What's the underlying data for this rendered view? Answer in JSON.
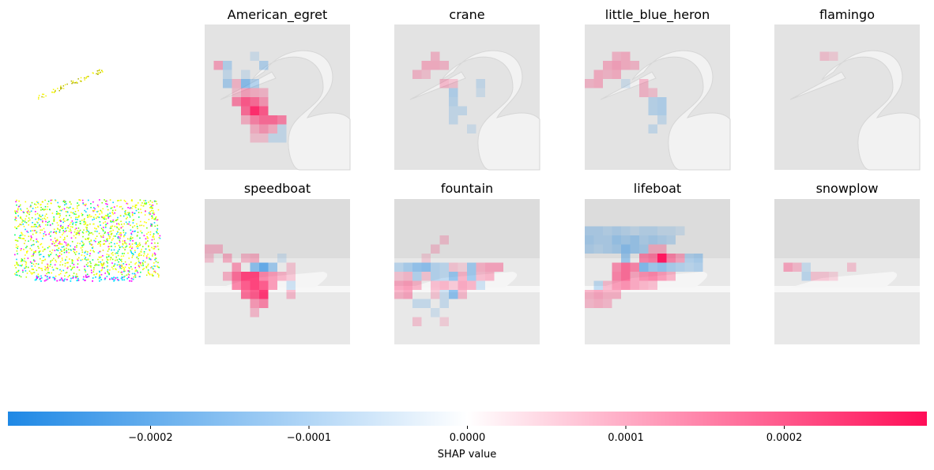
{
  "chart_data": {
    "type": "heatmap",
    "colors": {
      "negative": "#1e88e5",
      "positive": "#ff0d57",
      "neutral": "#ffffff",
      "background_image": "#e6e6e6"
    },
    "rows": [
      {
        "labels": [
          "American_egret",
          "crane",
          "little_blue_heron",
          "flamingo"
        ],
        "scene": "egret"
      },
      {
        "labels": [
          "speedboat",
          "fountain",
          "lifeboat",
          "snowplow"
        ],
        "scene": "boat"
      }
    ],
    "colorbar": {
      "label": "SHAP value",
      "ticks": [
        -0.0002,
        -0.0001,
        0.0,
        0.0001,
        0.0002
      ],
      "tick_labels": [
        "−0.0002",
        "−0.0001",
        "0.0000",
        "0.0001",
        "0.0002"
      ],
      "range": [
        -0.00029,
        0.00029
      ]
    },
    "hotspots": [
      [
        [
          [
            6,
            3,
            0.25
          ],
          [
            6,
            4,
            -0.5
          ],
          [
            6,
            5,
            -0.3
          ],
          [
            5,
            4,
            -0.15
          ],
          [
            7,
            3,
            0.2
          ],
          [
            7,
            4,
            0.35
          ],
          [
            7,
            5,
            0.3
          ],
          [
            7,
            6,
            0.25
          ],
          [
            8,
            3,
            0.5
          ],
          [
            8,
            4,
            0.7
          ],
          [
            8,
            5,
            0.6
          ],
          [
            8,
            6,
            0.4
          ],
          [
            9,
            4,
            0.6
          ],
          [
            9,
            5,
            0.9
          ],
          [
            9,
            6,
            0.7
          ],
          [
            10,
            4,
            0.3
          ],
          [
            10,
            5,
            0.5
          ],
          [
            10,
            6,
            0.6
          ],
          [
            10,
            7,
            0.6
          ],
          [
            10,
            8,
            0.5
          ],
          [
            11,
            5,
            0.3
          ],
          [
            11,
            6,
            0.4
          ],
          [
            11,
            7,
            0.3
          ],
          [
            12,
            5,
            0.2
          ],
          [
            12,
            6,
            0.2
          ],
          [
            12,
            7,
            -0.2
          ],
          [
            4,
            1,
            0.35
          ],
          [
            4,
            2,
            -0.3
          ],
          [
            5,
            2,
            -0.2
          ],
          [
            4,
            6,
            -0.3
          ],
          [
            6,
            2,
            -0.35
          ],
          [
            3,
            5,
            -0.15
          ],
          [
            11,
            8,
            -0.2
          ],
          [
            12,
            8,
            -0.2
          ]
        ],
        [
          [
            3,
            4,
            0.25
          ],
          [
            4,
            4,
            0.3
          ],
          [
            4,
            3,
            0.3
          ],
          [
            4,
            5,
            0.25
          ],
          [
            5,
            2,
            0.25
          ],
          [
            5,
            3,
            0.2
          ],
          [
            6,
            5,
            0.25
          ],
          [
            6,
            6,
            0.2
          ],
          [
            7,
            6,
            -0.3
          ],
          [
            8,
            6,
            -0.25
          ],
          [
            9,
            6,
            -0.2
          ],
          [
            9,
            7,
            -0.2
          ],
          [
            10,
            6,
            -0.2
          ],
          [
            6,
            9,
            -0.2
          ],
          [
            7,
            9,
            -0.15
          ],
          [
            11,
            8,
            -0.15
          ]
        ],
        [
          [
            3,
            3,
            0.25
          ],
          [
            3,
            4,
            0.3
          ],
          [
            4,
            2,
            0.3
          ],
          [
            4,
            3,
            0.35
          ],
          [
            4,
            4,
            0.3
          ],
          [
            4,
            5,
            0.25
          ],
          [
            5,
            1,
            0.3
          ],
          [
            5,
            2,
            0.25
          ],
          [
            5,
            3,
            0.3
          ],
          [
            6,
            0,
            0.25
          ],
          [
            6,
            1,
            0.3
          ],
          [
            6,
            6,
            0.25
          ],
          [
            7,
            6,
            0.25
          ],
          [
            7,
            7,
            0.2
          ],
          [
            8,
            7,
            -0.25
          ],
          [
            8,
            8,
            -0.3
          ],
          [
            9,
            7,
            -0.25
          ],
          [
            9,
            8,
            -0.3
          ],
          [
            10,
            8,
            -0.2
          ],
          [
            11,
            7,
            -0.2
          ],
          [
            6,
            4,
            -0.15
          ]
        ],
        [
          [
            3,
            5,
            0.2
          ],
          [
            3,
            6,
            0.15
          ]
        ]
      ],
      [
        [
          [
            5,
            0,
            0.25
          ],
          [
            5,
            1,
            0.25
          ],
          [
            6,
            0,
            0.2
          ],
          [
            6,
            2,
            0.3
          ],
          [
            6,
            4,
            0.25
          ],
          [
            6,
            5,
            0.3
          ],
          [
            7,
            3,
            0.4
          ],
          [
            7,
            5,
            -0.5
          ],
          [
            7,
            6,
            -0.7
          ],
          [
            7,
            7,
            -0.4
          ],
          [
            8,
            2,
            0.3
          ],
          [
            8,
            3,
            0.6
          ],
          [
            8,
            4,
            0.8
          ],
          [
            8,
            5,
            0.8
          ],
          [
            8,
            6,
            0.5
          ],
          [
            8,
            7,
            0.4
          ],
          [
            8,
            8,
            0.3
          ],
          [
            9,
            3,
            0.5
          ],
          [
            9,
            4,
            0.7
          ],
          [
            9,
            5,
            0.8
          ],
          [
            9,
            6,
            0.7
          ],
          [
            9,
            7,
            0.4
          ],
          [
            10,
            4,
            0.6
          ],
          [
            10,
            5,
            0.7
          ],
          [
            10,
            6,
            0.85
          ],
          [
            11,
            5,
            0.4
          ],
          [
            11,
            6,
            0.5
          ],
          [
            12,
            5,
            0.25
          ],
          [
            7,
            9,
            0.2
          ],
          [
            8,
            9,
            0.2
          ],
          [
            6,
            8,
            -0.15
          ],
          [
            9,
            9,
            -0.2
          ],
          [
            10,
            9,
            0.25
          ]
        ],
        [
          [
            7,
            0,
            -0.25
          ],
          [
            7,
            1,
            -0.35
          ],
          [
            7,
            2,
            -0.45
          ],
          [
            7,
            3,
            -0.5
          ],
          [
            7,
            4,
            -0.3
          ],
          [
            7,
            5,
            -0.25
          ],
          [
            7,
            6,
            0.2
          ],
          [
            7,
            7,
            0.15
          ],
          [
            7,
            8,
            -0.4
          ],
          [
            7,
            9,
            0.3
          ],
          [
            7,
            10,
            0.35
          ],
          [
            7,
            11,
            0.35
          ],
          [
            8,
            0,
            0.2
          ],
          [
            8,
            1,
            0.25
          ],
          [
            8,
            2,
            -0.3
          ],
          [
            8,
            3,
            0.2
          ],
          [
            8,
            4,
            -0.3
          ],
          [
            8,
            5,
            -0.25
          ],
          [
            8,
            6,
            -0.45
          ],
          [
            8,
            7,
            0.3
          ],
          [
            8,
            8,
            -0.4
          ],
          [
            8,
            9,
            0.25
          ],
          [
            8,
            10,
            0.3
          ],
          [
            9,
            0,
            0.35
          ],
          [
            9,
            1,
            0.4
          ],
          [
            9,
            2,
            0.3
          ],
          [
            9,
            4,
            0.25
          ],
          [
            9,
            5,
            0.3
          ],
          [
            9,
            6,
            0.2
          ],
          [
            9,
            7,
            0.35
          ],
          [
            9,
            8,
            0.3
          ],
          [
            9,
            9,
            -0.2
          ],
          [
            10,
            0,
            0.3
          ],
          [
            10,
            1,
            0.35
          ],
          [
            10,
            4,
            0.2
          ],
          [
            10,
            5,
            -0.2
          ],
          [
            10,
            6,
            -0.5
          ],
          [
            10,
            7,
            0.25
          ],
          [
            11,
            2,
            -0.2
          ],
          [
            11,
            3,
            -0.2
          ],
          [
            11,
            5,
            -0.2
          ],
          [
            12,
            4,
            -0.15
          ],
          [
            13,
            2,
            0.2
          ],
          [
            13,
            5,
            0.15
          ],
          [
            4,
            5,
            0.2
          ],
          [
            5,
            4,
            0.2
          ],
          [
            6,
            3,
            0.15
          ]
        ],
        [
          [
            3,
            0,
            -0.3
          ],
          [
            3,
            1,
            -0.3
          ],
          [
            3,
            2,
            -0.25
          ],
          [
            3,
            3,
            -0.3
          ],
          [
            3,
            4,
            -0.25
          ],
          [
            3,
            5,
            -0.2
          ],
          [
            3,
            6,
            -0.25
          ],
          [
            3,
            7,
            -0.25
          ],
          [
            3,
            8,
            -0.2
          ],
          [
            3,
            9,
            -0.2
          ],
          [
            3,
            10,
            -0.15
          ],
          [
            4,
            0,
            -0.35
          ],
          [
            4,
            1,
            -0.3
          ],
          [
            4,
            2,
            -0.3
          ],
          [
            4,
            3,
            -0.4
          ],
          [
            4,
            4,
            -0.35
          ],
          [
            4,
            5,
            -0.4
          ],
          [
            4,
            6,
            -0.3
          ],
          [
            4,
            7,
            -0.35
          ],
          [
            4,
            8,
            -0.3
          ],
          [
            4,
            9,
            -0.25
          ],
          [
            5,
            0,
            -0.3
          ],
          [
            5,
            1,
            -0.25
          ],
          [
            5,
            2,
            -0.3
          ],
          [
            5,
            3,
            -0.35
          ],
          [
            5,
            4,
            -0.5
          ],
          [
            5,
            5,
            -0.4
          ],
          [
            5,
            6,
            -0.35
          ],
          [
            5,
            7,
            0.3
          ],
          [
            5,
            8,
            0.3
          ],
          [
            6,
            4,
            -0.4
          ],
          [
            6,
            6,
            0.5
          ],
          [
            6,
            7,
            0.55
          ],
          [
            6,
            8,
            1.0
          ],
          [
            6,
            9,
            0.5
          ],
          [
            6,
            10,
            0.35
          ],
          [
            6,
            11,
            -0.3
          ],
          [
            6,
            12,
            -0.35
          ],
          [
            7,
            3,
            0.45
          ],
          [
            7,
            4,
            0.6
          ],
          [
            7,
            5,
            0.5
          ],
          [
            7,
            6,
            -0.55
          ],
          [
            7,
            7,
            -0.4
          ],
          [
            7,
            8,
            -0.45
          ],
          [
            7,
            9,
            -0.35
          ],
          [
            7,
            10,
            -0.3
          ],
          [
            7,
            11,
            -0.25
          ],
          [
            7,
            12,
            -0.3
          ],
          [
            8,
            3,
            0.5
          ],
          [
            8,
            4,
            0.6
          ],
          [
            8,
            5,
            0.35
          ],
          [
            8,
            6,
            0.45
          ],
          [
            8,
            7,
            0.5
          ],
          [
            8,
            8,
            0.4
          ],
          [
            8,
            9,
            0.3
          ],
          [
            9,
            1,
            -0.25
          ],
          [
            9,
            2,
            0.25
          ],
          [
            9,
            3,
            0.4
          ],
          [
            9,
            4,
            0.45
          ],
          [
            9,
            5,
            0.35
          ],
          [
            9,
            6,
            0.3
          ],
          [
            9,
            7,
            0.25
          ],
          [
            10,
            0,
            0.3
          ],
          [
            10,
            1,
            0.35
          ],
          [
            10,
            2,
            0.3
          ],
          [
            10,
            3,
            0.3
          ],
          [
            11,
            0,
            0.25
          ],
          [
            11,
            1,
            0.3
          ],
          [
            11,
            2,
            0.25
          ]
        ],
        [
          [
            7,
            1,
            0.35
          ],
          [
            7,
            2,
            0.25
          ],
          [
            7,
            3,
            -0.2
          ],
          [
            8,
            3,
            -0.25
          ],
          [
            8,
            4,
            0.2
          ],
          [
            8,
            5,
            0.2
          ],
          [
            8,
            6,
            0.15
          ],
          [
            7,
            8,
            0.2
          ]
        ]
      ]
    ]
  }
}
